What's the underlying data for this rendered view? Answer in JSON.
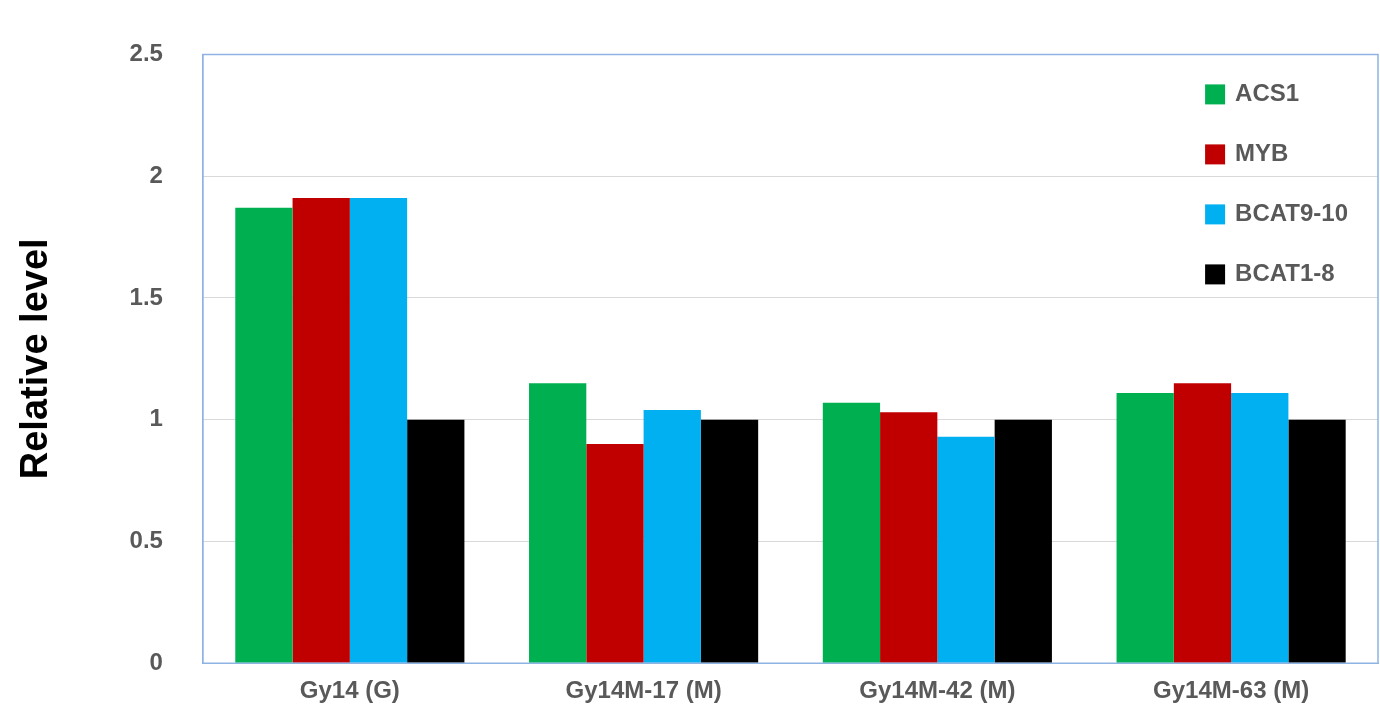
{
  "chart_data": {
    "type": "bar",
    "ylabel": "Relative level",
    "categories": [
      "Gy14 (G)",
      "Gy14M-17 (M)",
      "Gy14M-42 (M)",
      "Gy14M-63 (M)"
    ],
    "series": [
      {
        "name": "ACS1",
        "color": "#00b050",
        "values": [
          1.87,
          1.15,
          1.07,
          1.11
        ]
      },
      {
        "name": "MYB",
        "color": "#c00000",
        "values": [
          1.91,
          0.9,
          1.03,
          1.15
        ]
      },
      {
        "name": "BCAT9-10",
        "color": "#00b0f0",
        "values": [
          1.91,
          1.04,
          0.93,
          1.11
        ]
      },
      {
        "name": "BCAT1-8",
        "color": "#000000",
        "values": [
          1,
          1,
          1,
          1
        ]
      }
    ],
    "ylim": [
      0,
      2.5
    ],
    "yticks": [
      0,
      0.5,
      1,
      1.5,
      2,
      2.5
    ],
    "grid": "y",
    "legend": "top right"
  }
}
